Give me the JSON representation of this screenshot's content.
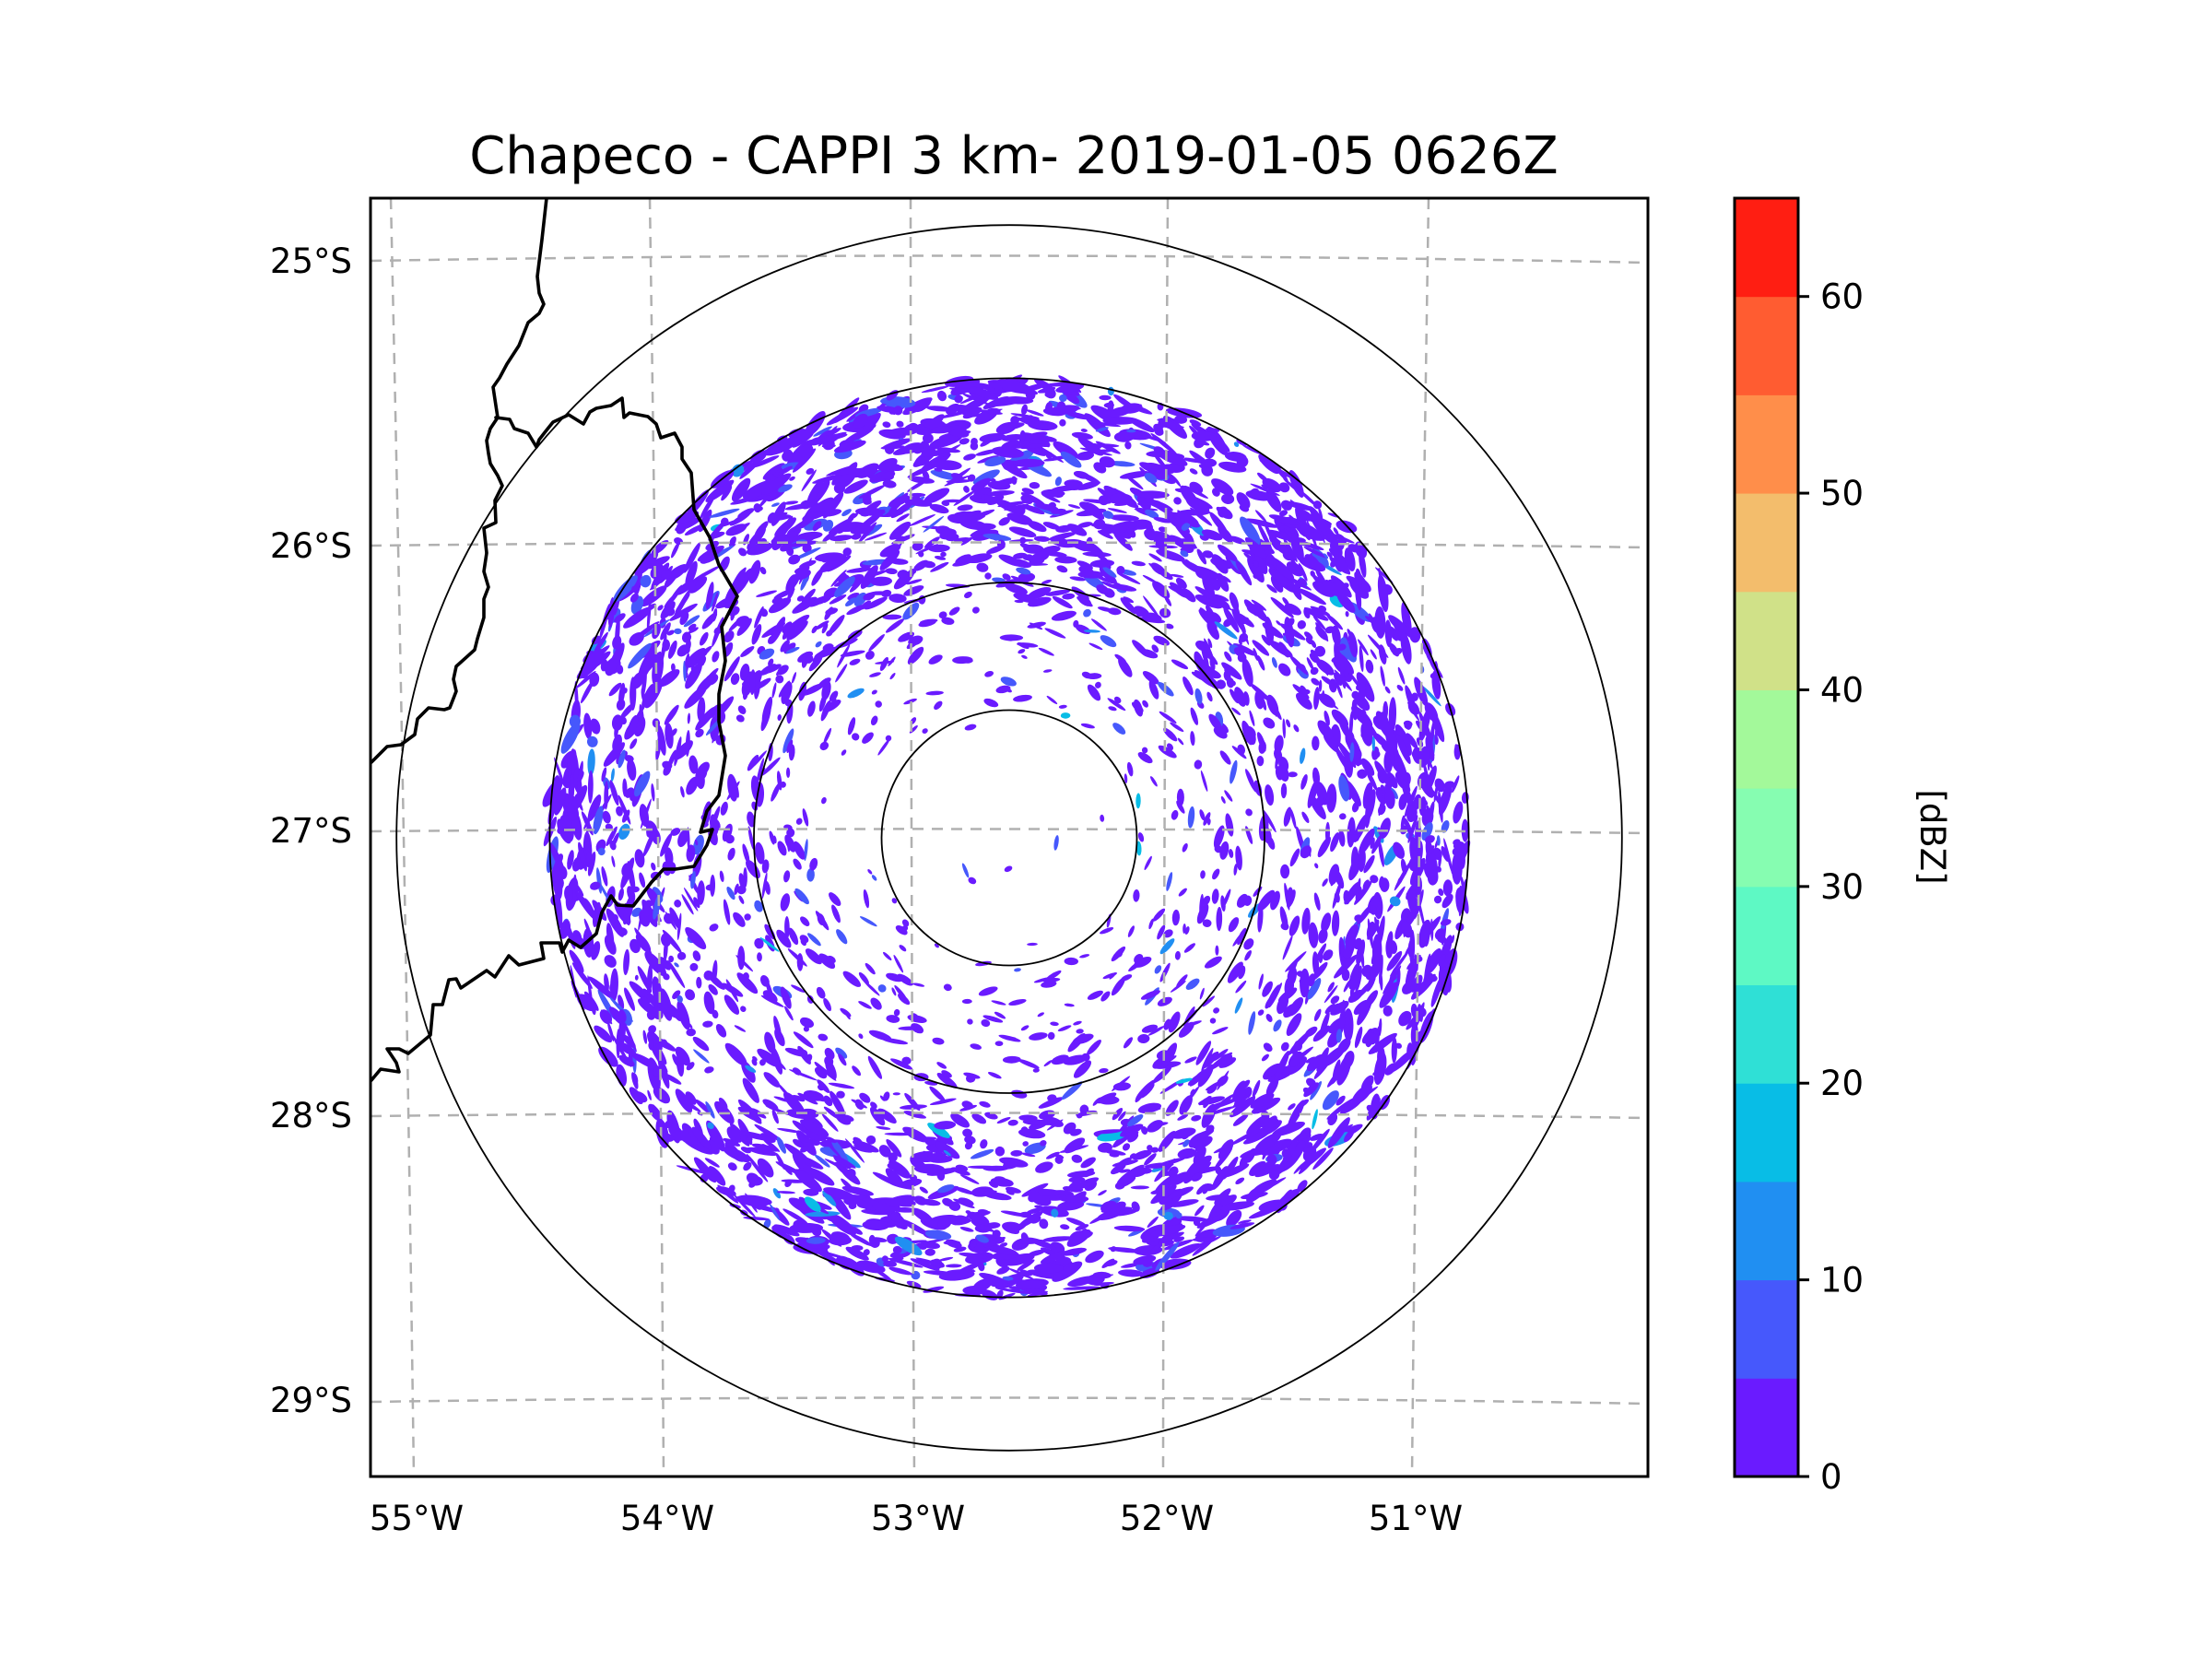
{
  "chart_data": {
    "type": "heatmap",
    "subtype": "radar-ppi-map",
    "title": "Chapeco - CAPPI 3 km- 2019-01-05 0626Z",
    "radar_name": "Chapeco",
    "product": "CAPPI 3 km",
    "datetime": "2019-01-05 0626Z",
    "xlabel": "",
    "ylabel": "",
    "x_ticks": [
      "55°W",
      "54°W",
      "53°W",
      "52°W",
      "51°W"
    ],
    "x_tick_values": [
      -55,
      -54,
      -53,
      -52,
      -51
    ],
    "y_ticks": [
      "25°S",
      "26°S",
      "27°S",
      "28°S",
      "29°S"
    ],
    "y_tick_values": [
      -25,
      -26,
      -27,
      -28,
      -29
    ],
    "xlim": [
      -55.2,
      -50.1
    ],
    "ylim": [
      -29.3,
      -24.8
    ],
    "grid": true,
    "radar_center": {
      "lon": -52.6,
      "lat": -27.0
    },
    "range_rings_km": [
      50,
      100,
      180,
      240
    ],
    "colorbar": {
      "label": "[dBZ]",
      "range": [
        0,
        65
      ],
      "ticks": [
        0,
        10,
        20,
        30,
        40,
        50,
        60
      ],
      "tick_labels": [
        "0",
        "10",
        "20",
        "30",
        "40",
        "50",
        "60"
      ],
      "levels": [
        0,
        5,
        10,
        15,
        20,
        25,
        30,
        35,
        40,
        45,
        50,
        55,
        60,
        65
      ],
      "colors": [
        "#6a1bff",
        "#4658fc",
        "#208ff2",
        "#08bde6",
        "#2fe0d6",
        "#5ef9c4",
        "#86fdb1",
        "#a3f99a",
        "#d0e188",
        "#f3bd6c",
        "#ff8e4a",
        "#ff5c31",
        "#ff1e12"
      ],
      "position": "right"
    },
    "echo_summary": {
      "dominant_range_dBZ": [
        0,
        5
      ],
      "secondary_range_dBZ": [
        5,
        15
      ],
      "max_observed_dBZ_approx": 20,
      "coverage": "scattered weak echoes filling disk out to ~180 km; densest to the north (26°S, 53°W–52°W) and along the east/southeast ring edge; nearly clear within 50 km ring"
    },
    "map_features": [
      "state/national borders (black lines, west side)",
      "range rings (thin black circles)",
      "lat/lon graticule (gray dashed)"
    ]
  }
}
